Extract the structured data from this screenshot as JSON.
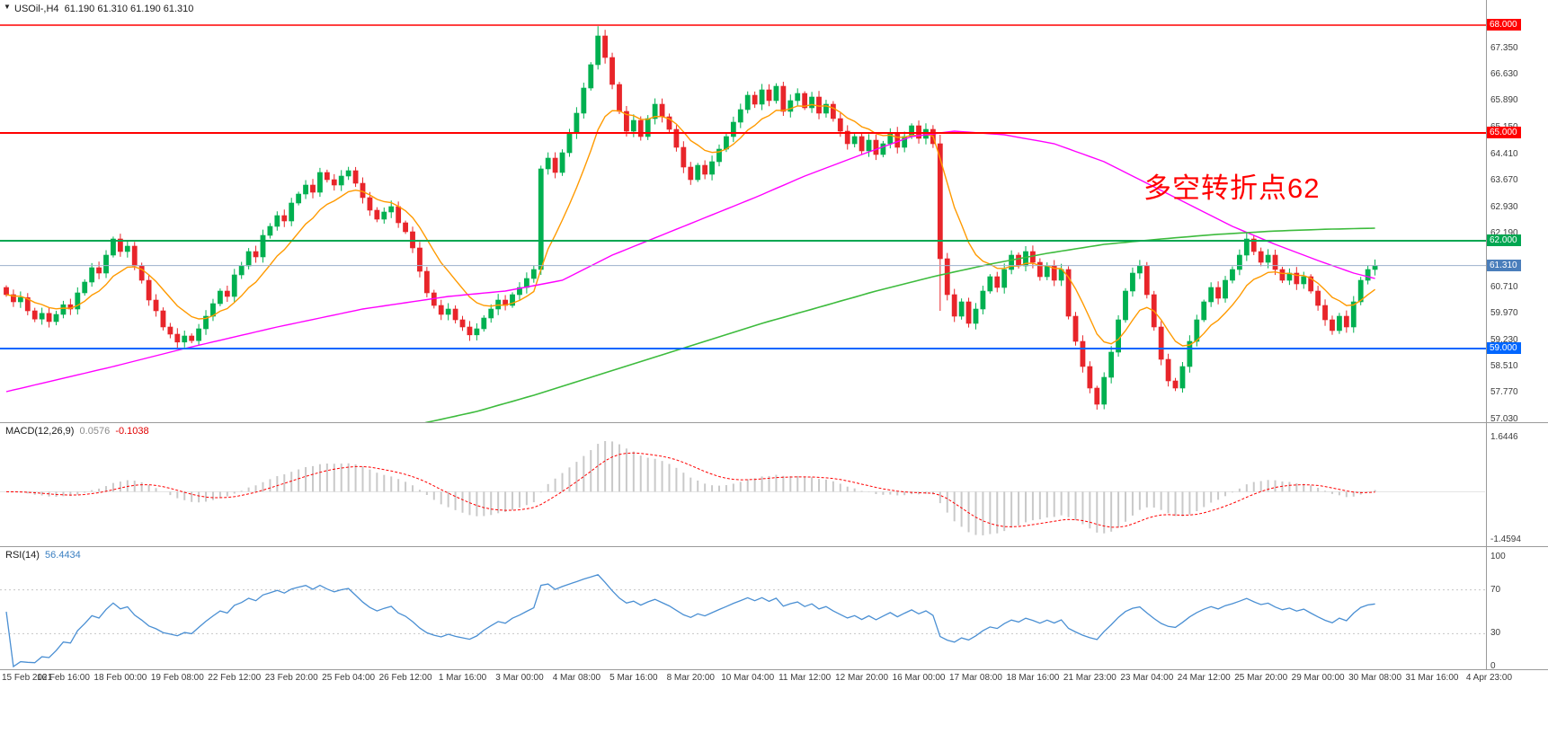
{
  "window": {
    "marker": "▼",
    "symbol_title": "USOil-,H4",
    "ohlc_text": "61.190 61.310 61.190 61.310"
  },
  "annotation": {
    "text": "多空转折点62",
    "color": "#ff0000"
  },
  "colors": {
    "candle_up": "#00b050",
    "candle_down": "#e8252a",
    "ma_orange": "#ff9a00",
    "ma_magenta": "#ff00ff",
    "ma_green": "#3dbb3d",
    "line_red": "#ff0000",
    "line_green": "#00a651",
    "line_blue": "#0066ff",
    "current_badge": "#4a7ebb",
    "current_line": "#9bb0cc",
    "macd_hist": "#c9c9c9",
    "macd_signal": "#ff0000",
    "rsi_line": "#4a8fd3"
  },
  "price_axis": {
    "grid_labels": [
      "67.350",
      "66.630",
      "65.890",
      "65.150",
      "64.410",
      "63.670",
      "62.930",
      "62.190",
      "60.710",
      "59.970",
      "59.230",
      "58.510",
      "57.770",
      "57.030"
    ],
    "badges": [
      {
        "text": "68.000",
        "price": 68.0,
        "color": "#ff0000"
      },
      {
        "text": "65.000",
        "price": 65.0,
        "color": "#ff0000"
      },
      {
        "text": "62.000",
        "price": 62.0,
        "color": "#00a651"
      },
      {
        "text": "59.000",
        "price": 59.0,
        "color": "#0066ff"
      },
      {
        "text": "61.310",
        "price": 61.31,
        "color": "#4a7ebb"
      }
    ]
  },
  "time_axis": {
    "labels": [
      "15 Feb 2021",
      "16 Feb 16:00",
      "18 Feb 00:00",
      "19 Feb 08:00",
      "22 Feb 12:00",
      "23 Feb 20:00",
      "25 Feb 04:00",
      "26 Feb 12:00",
      "1 Mar 16:00",
      "3 Mar 00:00",
      "4 Mar 08:00",
      "5 Mar 16:00",
      "8 Mar 20:00",
      "10 Mar 04:00",
      "11 Mar 12:00",
      "12 Mar 20:00",
      "16 Mar 00:00",
      "17 Mar 08:00",
      "18 Mar 16:00",
      "21 Mar 23:00",
      "23 Mar 04:00",
      "24 Mar 12:00",
      "25 Mar 20:00",
      "29 Mar 00:00",
      "30 Mar 08:00",
      "31 Mar 16:00",
      "4 Apr 23:00"
    ]
  },
  "macd": {
    "label": "MACD(12,26,9)",
    "value_main": "0.0576",
    "value_signal": "-0.1038",
    "axis": [
      {
        "text": "1.6446",
        "v": 1.6446
      },
      {
        "text": "-1.4594",
        "v": -1.4594
      }
    ]
  },
  "rsi": {
    "label": "RSI(14)",
    "value": "56.4434",
    "axis": [
      {
        "text": "100",
        "v": 100
      },
      {
        "text": "70",
        "v": 70
      },
      {
        "text": "30",
        "v": 30
      },
      {
        "text": "0",
        "v": 0
      }
    ]
  },
  "chart_data": [
    {
      "type": "candlestick",
      "title": "USOil- H4",
      "ylim": [
        56.95,
        68.3
      ],
      "current_price": 61.31,
      "horizontal_lines": [
        {
          "price": 68.0,
          "color": "#ff0000",
          "width": 1.5
        },
        {
          "price": 65.0,
          "color": "#ff0000",
          "width": 2
        },
        {
          "price": 62.0,
          "color": "#00a651",
          "width": 2
        },
        {
          "price": 59.0,
          "color": "#0066ff",
          "width": 2
        }
      ],
      "first_open": 60.7,
      "closes": [
        60.5,
        60.3,
        60.42,
        60.05,
        59.82,
        59.98,
        59.75,
        59.95,
        60.22,
        60.1,
        60.55,
        60.85,
        61.25,
        61.1,
        61.6,
        62.05,
        61.7,
        61.85,
        61.3,
        60.9,
        60.35,
        60.05,
        59.6,
        59.4,
        59.18,
        59.35,
        59.22,
        59.55,
        59.9,
        60.25,
        60.6,
        60.45,
        61.05,
        61.3,
        61.7,
        61.55,
        62.15,
        62.4,
        62.7,
        62.55,
        63.05,
        63.3,
        63.55,
        63.35,
        63.9,
        63.7,
        63.55,
        63.8,
        63.95,
        63.6,
        63.2,
        62.85,
        62.6,
        62.8,
        62.95,
        62.5,
        62.25,
        61.8,
        61.15,
        60.55,
        60.2,
        59.95,
        60.1,
        59.8,
        59.6,
        59.38,
        59.55,
        59.85,
        60.1,
        60.35,
        60.2,
        60.5,
        60.7,
        60.95,
        61.2,
        64.0,
        64.3,
        63.9,
        64.45,
        65.0,
        65.55,
        66.25,
        66.9,
        67.7,
        67.1,
        66.35,
        65.6,
        65.05,
        65.35,
        64.9,
        65.4,
        65.8,
        65.45,
        65.1,
        64.6,
        64.05,
        63.7,
        64.1,
        63.85,
        64.2,
        64.55,
        64.9,
        65.3,
        65.65,
        66.05,
        65.8,
        66.2,
        65.9,
        66.3,
        65.6,
        65.9,
        66.1,
        65.7,
        66.0,
        65.55,
        65.8,
        65.4,
        65.05,
        64.7,
        64.9,
        64.5,
        64.8,
        64.4,
        64.7,
        65.0,
        64.6,
        64.9,
        65.2,
        64.85,
        65.1,
        64.7,
        61.5,
        60.5,
        59.9,
        60.3,
        59.7,
        60.1,
        60.6,
        61.0,
        60.7,
        61.2,
        61.6,
        61.3,
        61.7,
        61.4,
        61.0,
        61.3,
        60.9,
        61.2,
        59.9,
        59.2,
        58.5,
        57.9,
        57.45,
        58.2,
        58.9,
        59.8,
        60.6,
        61.1,
        61.3,
        60.5,
        59.6,
        58.7,
        58.1,
        57.9,
        58.5,
        59.2,
        59.8,
        60.3,
        60.7,
        60.4,
        60.9,
        61.2,
        61.6,
        62.05,
        61.7,
        61.4,
        61.6,
        61.2,
        60.9,
        61.1,
        60.8,
        61.0,
        60.6,
        60.2,
        59.8,
        59.5,
        59.9,
        59.6,
        60.3,
        60.9,
        61.2,
        61.31
      ],
      "specials": {
        "75": {
          "lo": 61.05
        },
        "83": {
          "hi": 67.97
        },
        "131": {
          "hi": 64.95,
          "lo": 60.05
        },
        "153": {
          "lo": 57.3
        }
      },
      "moving_averages": {
        "orange": {
          "method": "ema",
          "period": 10,
          "color": "#ff9a00"
        },
        "magenta": {
          "color": "#ff00ff",
          "keypoints": [
            [
              0,
              57.8
            ],
            [
              15,
              58.5
            ],
            [
              25,
              59.0
            ],
            [
              38,
              59.6
            ],
            [
              50,
              60.1
            ],
            [
              62,
              60.45
            ],
            [
              70,
              60.6
            ],
            [
              78,
              60.9
            ],
            [
              85,
              61.6
            ],
            [
              95,
              62.4
            ],
            [
              105,
              63.2
            ],
            [
              112,
              63.8
            ],
            [
              120,
              64.4
            ],
            [
              127,
              64.9
            ],
            [
              133,
              65.05
            ],
            [
              140,
              64.95
            ],
            [
              147,
              64.7
            ],
            [
              154,
              64.2
            ],
            [
              160,
              63.6
            ],
            [
              166,
              63.0
            ],
            [
              172,
              62.4
            ],
            [
              178,
              61.9
            ],
            [
              184,
              61.45
            ],
            [
              189,
              61.1
            ],
            [
              192,
              60.95
            ]
          ]
        },
        "green": {
          "color": "#3dbb3d",
          "keypoints": [
            [
              58,
              56.9
            ],
            [
              66,
              57.25
            ],
            [
              74,
              57.7
            ],
            [
              82,
              58.2
            ],
            [
              90,
              58.7
            ],
            [
              98,
              59.2
            ],
            [
              106,
              59.7
            ],
            [
              114,
              60.15
            ],
            [
              122,
              60.6
            ],
            [
              130,
              61.0
            ],
            [
              138,
              61.35
            ],
            [
              146,
              61.65
            ],
            [
              154,
              61.9
            ],
            [
              162,
              62.05
            ],
            [
              170,
              62.18
            ],
            [
              178,
              62.27
            ],
            [
              185,
              62.32
            ],
            [
              192,
              62.35
            ]
          ]
        }
      }
    },
    {
      "type": "bar",
      "title": "MACD(12,26,9)",
      "params": [
        12,
        26,
        9
      ],
      "ylim": [
        -1.4594,
        1.6446
      ],
      "last_values": [
        0.0576,
        -0.1038
      ],
      "derived_from": "closes of chart_data[0]"
    },
    {
      "type": "line",
      "title": "RSI(14)",
      "period": 14,
      "ylim": [
        0,
        100
      ],
      "levels": [
        70,
        30
      ],
      "last_value": 56.4434,
      "derived_from": "closes of chart_data[0]"
    }
  ]
}
